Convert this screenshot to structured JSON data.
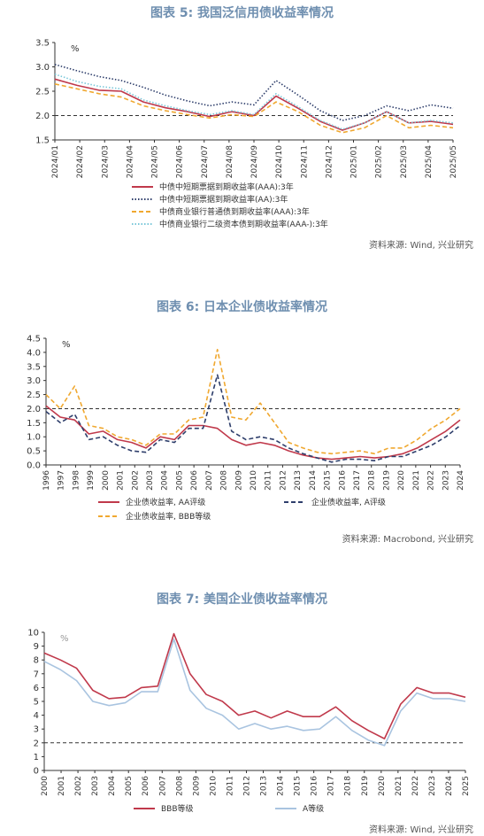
{
  "charts": [
    {
      "id": "fig5",
      "title": "图表 5:  我国泛信用债收益率情况",
      "source": "资料来源: Wind, 兴业研究",
      "unit": "%",
      "yticks": [
        "3.5",
        "3.0",
        "2.5",
        "2.0",
        "1.5"
      ],
      "xticks": [
        "2024/01",
        "2024/02",
        "2024/03",
        "2024/04",
        "2024/05",
        "2024/06",
        "2024/07",
        "2024/08",
        "2024/09",
        "2024/10",
        "2024/11",
        "2024/12",
        "2025/01",
        "2025/02",
        "2025/03",
        "2025/04",
        "2025/05"
      ],
      "legend": [
        {
          "label": "中债中短期票据到期收益率(AAA):3年",
          "color": "#c0394b",
          "dash": "solid"
        },
        {
          "label": "中债中短期票据到期收益率(AA):3年",
          "color": "#2e3e6b",
          "dash": "dot"
        },
        {
          "label": "中债商业银行普通债到期收益率(AAA):3年",
          "color": "#f0a830",
          "dash": "dash"
        },
        {
          "label": "中债商业银行二级资本债到期收益率(AAA-):3年",
          "color": "#7ac7d9",
          "dash": "dot"
        }
      ]
    },
    {
      "id": "fig6",
      "title": "图表 6:  日本企业债收益率情况",
      "source": "资料来源: Macrobond, 兴业研究",
      "unit": "%",
      "yticks": [
        "4.5",
        "4.0",
        "3.5",
        "3.0",
        "2.5",
        "2.0",
        "1.5",
        "1.0",
        "0.5",
        "0.0"
      ],
      "xticks": [
        "1996",
        "1997",
        "1998",
        "1999",
        "2000",
        "2001",
        "2002",
        "2003",
        "2004",
        "2005",
        "2006",
        "2007",
        "2008",
        "2009",
        "2010",
        "2011",
        "2012",
        "2013",
        "2014",
        "2015",
        "2016",
        "2017",
        "2018",
        "2019",
        "2020",
        "2021",
        "2022",
        "2023",
        "2024"
      ],
      "legend": [
        {
          "label": "企业债收益率, AA评级",
          "color": "#c0394b",
          "dash": "solid"
        },
        {
          "label": "企业债收益率, A评级",
          "color": "#2e3e6b",
          "dash": "dash"
        },
        {
          "label": "企业债收益率, BBB等级",
          "color": "#f0a830",
          "dash": "dash"
        }
      ]
    },
    {
      "id": "fig7",
      "title": "图表 7:  美国企业债收益率情况",
      "source": "资料来源: Wind, 兴业研究",
      "unit": "%",
      "yticks": [
        "10",
        "9",
        "8",
        "7",
        "6",
        "5",
        "4",
        "3",
        "2",
        "1",
        "0"
      ],
      "xticks": [
        "2000",
        "2001",
        "2002",
        "2003",
        "2004",
        "2005",
        "2006",
        "2007",
        "2008",
        "2009",
        "2010",
        "2011",
        "2012",
        "2013",
        "2014",
        "2015",
        "2016",
        "2017",
        "2018",
        "2019",
        "2020",
        "2021",
        "2022",
        "2023",
        "2024",
        "2025"
      ],
      "legend": [
        {
          "label": "BBB等级",
          "color": "#c0394b",
          "dash": "solid"
        },
        {
          "label": "A等级",
          "color": "#a9c4e0",
          "dash": "solid"
        }
      ]
    }
  ],
  "chart_data": [
    {
      "type": "line",
      "ylim": [
        1.5,
        3.5
      ],
      "reference_line": 2.0,
      "x": [
        "2024/01",
        "2024/02",
        "2024/03",
        "2024/04",
        "2024/05",
        "2024/06",
        "2024/07",
        "2024/08",
        "2024/09",
        "2024/10",
        "2024/10b",
        "2024/11",
        "2024/12",
        "2025/01",
        "2025/02",
        "2025/03",
        "2025/04",
        "2025/05",
        "2025/05e"
      ],
      "series": [
        {
          "name": "中债中短期票据到期收益率(AAA):3年",
          "values": [
            2.75,
            2.62,
            2.52,
            2.5,
            2.28,
            2.16,
            2.08,
            1.98,
            2.08,
            2.0,
            2.4,
            2.15,
            1.88,
            1.7,
            1.85,
            2.08,
            1.85,
            1.88,
            1.82
          ]
        },
        {
          "name": "中债中短期票据到期收益率(AA):3年",
          "values": [
            3.05,
            2.92,
            2.8,
            2.72,
            2.58,
            2.42,
            2.3,
            2.2,
            2.28,
            2.22,
            2.72,
            2.42,
            2.1,
            1.9,
            2.0,
            2.2,
            2.1,
            2.22,
            2.15
          ]
        },
        {
          "name": "中债商业银行普通债到期收益率(AAA):3年",
          "values": [
            2.65,
            2.55,
            2.45,
            2.38,
            2.2,
            2.1,
            2.02,
            1.95,
            2.02,
            1.98,
            2.28,
            2.08,
            1.8,
            1.65,
            1.75,
            2.0,
            1.75,
            1.8,
            1.75
          ]
        },
        {
          "name": "中债商业银行二级资本债到期收益率(AAA-):3年",
          "values": [
            2.85,
            2.7,
            2.6,
            2.55,
            2.32,
            2.2,
            2.1,
            2.02,
            2.1,
            2.02,
            2.45,
            2.18,
            1.9,
            1.72,
            1.85,
            2.08,
            1.85,
            1.9,
            1.85
          ]
        }
      ]
    },
    {
      "type": "line",
      "ylim": [
        0,
        4.5
      ],
      "reference_line": 2.0,
      "x": [
        1996,
        1997,
        1998,
        1999,
        2000,
        2001,
        2002,
        2003,
        2004,
        2005,
        2006,
        2007,
        2008,
        2009,
        2010,
        2011,
        2012,
        2013,
        2014,
        2015,
        2016,
        2017,
        2018,
        2019,
        2020,
        2021,
        2022,
        2023,
        2024,
        2024.6
      ],
      "series": [
        {
          "name": "企业债收益率, AA评级",
          "values": [
            2.1,
            1.7,
            1.6,
            1.1,
            1.2,
            0.9,
            0.8,
            0.6,
            1.0,
            0.9,
            1.4,
            1.4,
            1.3,
            0.9,
            0.7,
            0.8,
            0.7,
            0.5,
            0.35,
            0.25,
            0.2,
            0.25,
            0.3,
            0.25,
            0.3,
            0.4,
            0.6,
            0.9,
            1.2,
            1.6
          ]
        },
        {
          "name": "企业债收益率, A评级",
          "values": [
            1.9,
            1.5,
            1.8,
            0.9,
            1.0,
            0.7,
            0.5,
            0.45,
            0.9,
            0.8,
            1.3,
            1.3,
            3.2,
            1.2,
            0.9,
            1.0,
            0.9,
            0.6,
            0.4,
            0.25,
            0.1,
            0.2,
            0.2,
            0.15,
            0.3,
            0.3,
            0.5,
            0.7,
            1.0,
            1.4
          ]
        },
        {
          "name": "企业债收益率, BBB等级",
          "values": [
            2.5,
            2.0,
            2.8,
            1.4,
            1.3,
            1.0,
            0.9,
            0.7,
            1.1,
            1.1,
            1.6,
            1.7,
            4.1,
            1.7,
            1.6,
            2.2,
            1.5,
            0.8,
            0.6,
            0.45,
            0.4,
            0.45,
            0.5,
            0.4,
            0.6,
            0.6,
            0.9,
            1.3,
            1.6,
            2.0
          ]
        }
      ]
    },
    {
      "type": "line",
      "ylim": [
        0,
        10
      ],
      "reference_line": 2.0,
      "x": [
        2000,
        2001,
        2002,
        2003,
        2004,
        2005,
        2006,
        2007,
        2008,
        2009,
        2010,
        2011,
        2012,
        2013,
        2014,
        2015,
        2016,
        2017,
        2018,
        2019,
        2020,
        2021,
        2022,
        2023,
        2024,
        2025,
        2025.4
      ],
      "series": [
        {
          "name": "BBB等级",
          "values": [
            8.5,
            8.0,
            7.4,
            5.8,
            5.2,
            5.3,
            6.0,
            6.1,
            9.9,
            7.0,
            5.5,
            5.0,
            4.0,
            4.3,
            3.8,
            4.3,
            3.9,
            3.9,
            4.6,
            3.6,
            2.9,
            2.3,
            4.8,
            6.0,
            5.6,
            5.6,
            5.3
          ]
        },
        {
          "name": "A等级",
          "values": [
            7.9,
            7.3,
            6.5,
            5.0,
            4.7,
            4.9,
            5.7,
            5.7,
            9.5,
            5.8,
            4.5,
            4.0,
            3.0,
            3.4,
            3.0,
            3.2,
            2.9,
            3.0,
            3.9,
            2.9,
            2.2,
            1.8,
            4.3,
            5.6,
            5.2,
            5.2,
            5.0
          ]
        }
      ]
    }
  ]
}
